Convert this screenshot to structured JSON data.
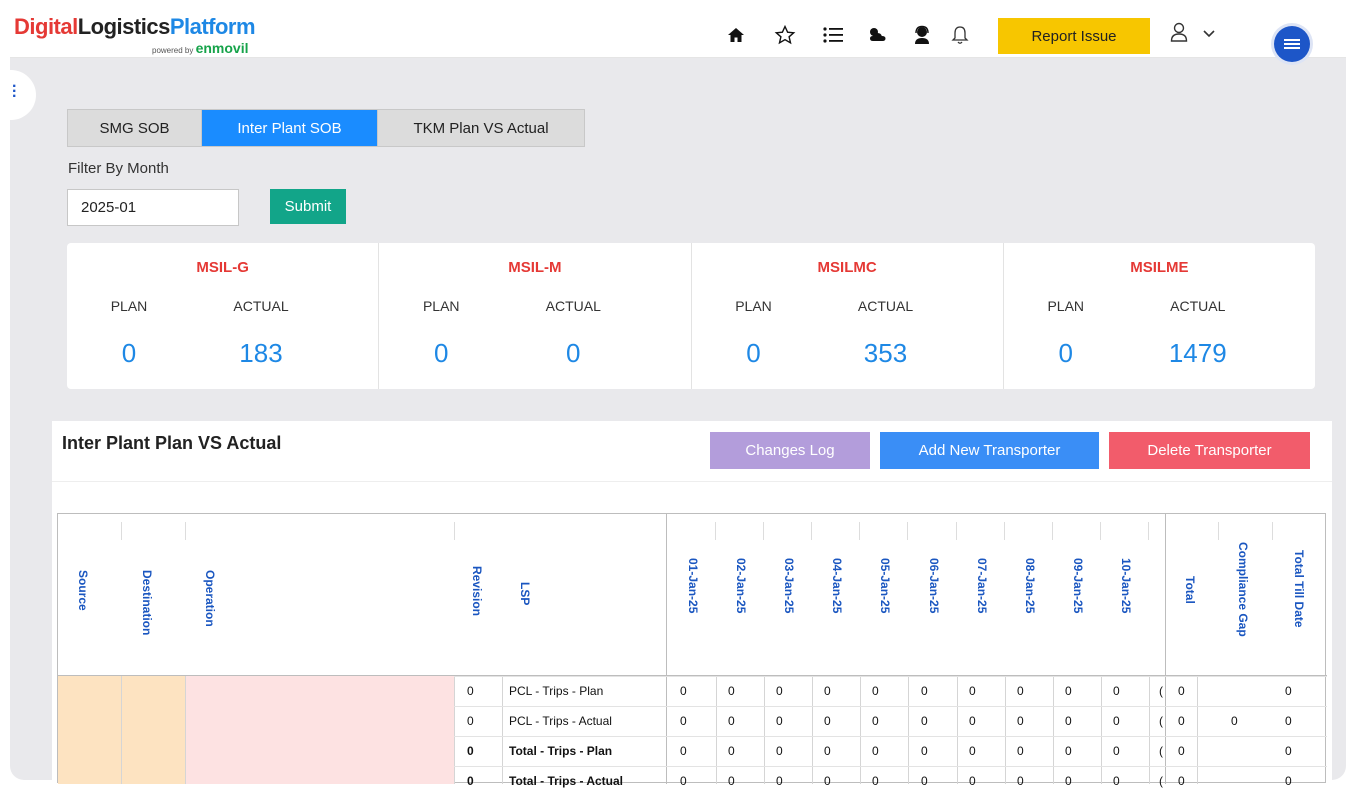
{
  "header": {
    "logo": {
      "part1": "Digital",
      "part2": "Logistics",
      "part3": "Platform",
      "powered_by": "powered by",
      "brand": "enmovil"
    },
    "icons": [
      "home-icon",
      "star-icon",
      "list-icon",
      "weather-icon",
      "support-agent-icon",
      "bell-icon"
    ],
    "report_issue_label": "Report Issue",
    "colors": {
      "report_button": "#f7c600",
      "menu_button": "#1d56c8"
    }
  },
  "tabs": [
    {
      "label": "SMG SOB",
      "active": false
    },
    {
      "label": "Inter Plant SOB",
      "active": true
    },
    {
      "label": "TKM Plan VS Actual",
      "active": false
    }
  ],
  "filter": {
    "label": "Filter By Month",
    "value": "2025-01",
    "submit_label": "Submit"
  },
  "plants": [
    {
      "name": "MSIL-G",
      "plan_label": "PLAN",
      "actual_label": "ACTUAL",
      "plan": "0",
      "actual": "183"
    },
    {
      "name": "MSIL-M",
      "plan_label": "PLAN",
      "actual_label": "ACTUAL",
      "plan": "0",
      "actual": "0"
    },
    {
      "name": "MSILMC",
      "plan_label": "PLAN",
      "actual_label": "ACTUAL",
      "plan": "0",
      "actual": "353"
    },
    {
      "name": "MSILME",
      "plan_label": "PLAN",
      "actual_label": "ACTUAL",
      "plan": "0",
      "actual": "1479"
    }
  ],
  "panel": {
    "title": "Inter Plant Plan VS Actual",
    "changes_log_label": "Changes Log",
    "add_transporter_label": "Add New Transporter",
    "delete_transporter_label": "Delete Transporter",
    "colors": {
      "changes_log": "#b39ddb",
      "add": "#3a8ef6",
      "delete": "#f25c6b"
    }
  },
  "table": {
    "left_headers": [
      "Source",
      "Destination",
      "Operation",
      "Revision",
      "LSP"
    ],
    "date_headers": [
      "01-Jan-25",
      "02-Jan-25",
      "03-Jan-25",
      "04-Jan-25",
      "05-Jan-25",
      "06-Jan-25",
      "07-Jan-25",
      "08-Jan-25",
      "09-Jan-25",
      "10-Jan-25"
    ],
    "right_headers": [
      "Total",
      "Compliance Gap",
      "Total Till Date"
    ],
    "rows": [
      {
        "revision": "0",
        "lsp": "PCL - Trips - Plan",
        "bold": false,
        "days": [
          "0",
          "0",
          "0",
          "0",
          "0",
          "0",
          "0",
          "0",
          "0",
          "0"
        ],
        "total": "0",
        "gap": "",
        "till_date": "0"
      },
      {
        "revision": "0",
        "lsp": "PCL - Trips - Actual",
        "bold": false,
        "days": [
          "0",
          "0",
          "0",
          "0",
          "0",
          "0",
          "0",
          "0",
          "0",
          "0"
        ],
        "total": "0",
        "gap": "0",
        "till_date": "0"
      },
      {
        "revision": "0",
        "lsp": "Total - Trips - Plan",
        "bold": true,
        "days": [
          "0",
          "0",
          "0",
          "0",
          "0",
          "0",
          "0",
          "0",
          "0",
          "0"
        ],
        "total": "0",
        "gap": "",
        "till_date": "0"
      },
      {
        "revision": "0",
        "lsp": "Total - Trips - Actual",
        "bold": true,
        "days": [
          "0",
          "0",
          "0",
          "0",
          "0",
          "0",
          "0",
          "0",
          "0",
          "0"
        ],
        "total": "0",
        "gap": "",
        "till_date": "0"
      }
    ]
  }
}
